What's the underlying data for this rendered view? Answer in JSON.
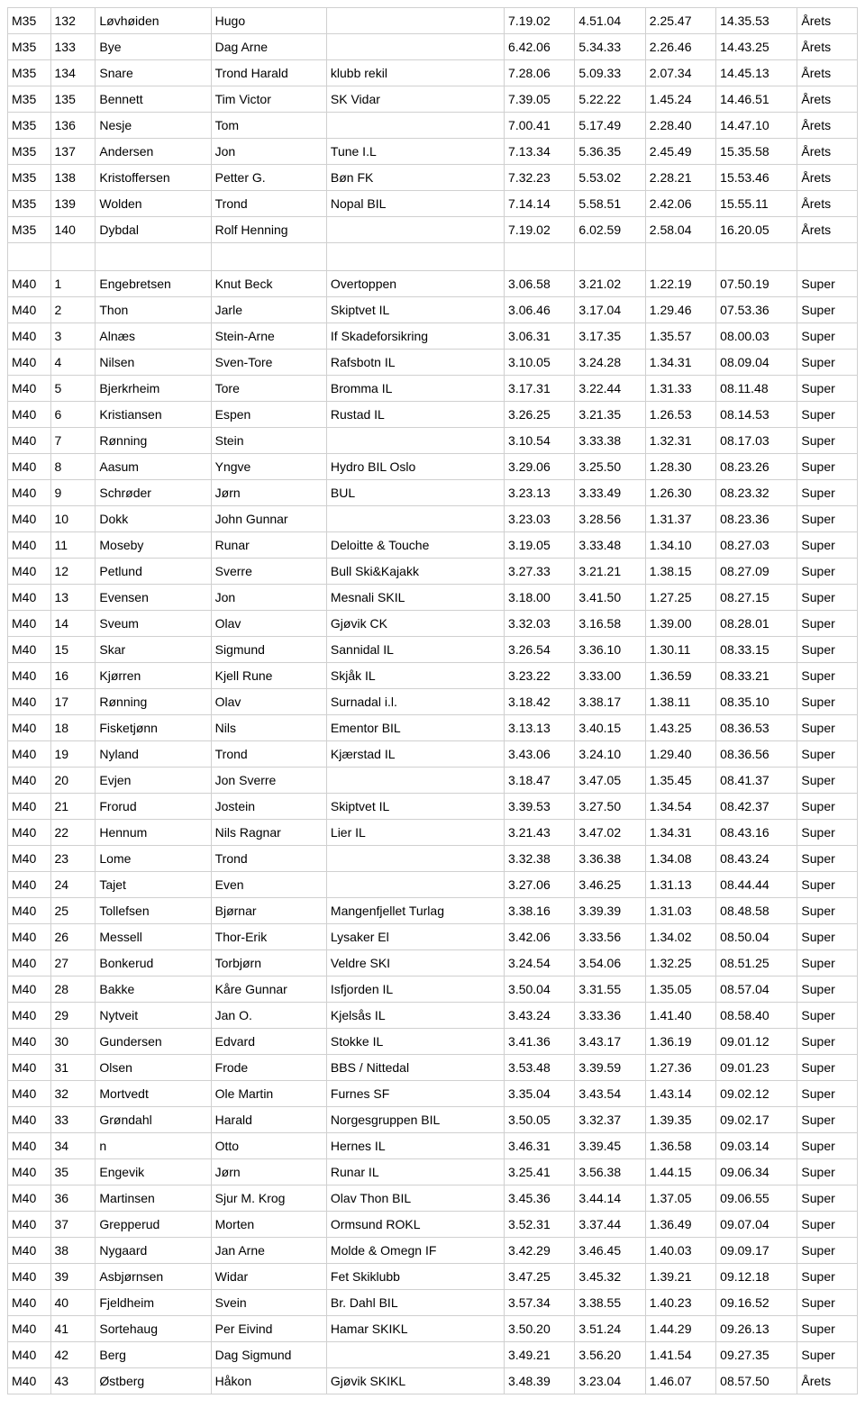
{
  "rows": [
    {
      "cls": "M35",
      "rank": "132",
      "last": "Løvhøiden",
      "first": "Hugo",
      "club": "",
      "t1": "7.19.02",
      "t2": "4.51.04",
      "t3": "2.25.47",
      "t4": "14.35.53",
      "cat": "Årets"
    },
    {
      "cls": "M35",
      "rank": "133",
      "last": "Bye",
      "first": "Dag Arne",
      "club": "",
      "t1": "6.42.06",
      "t2": "5.34.33",
      "t3": "2.26.46",
      "t4": "14.43.25",
      "cat": "Årets"
    },
    {
      "cls": "M35",
      "rank": "134",
      "last": "Snare",
      "first": "Trond Harald",
      "club": "klubb rekil",
      "t1": "7.28.06",
      "t2": "5.09.33",
      "t3": "2.07.34",
      "t4": "14.45.13",
      "cat": "Årets"
    },
    {
      "cls": "M35",
      "rank": "135",
      "last": "Bennett",
      "first": "Tim Victor",
      "club": "SK Vidar",
      "t1": "7.39.05",
      "t2": "5.22.22",
      "t3": "1.45.24",
      "t4": "14.46.51",
      "cat": "Årets"
    },
    {
      "cls": "M35",
      "rank": "136",
      "last": "Nesje",
      "first": "Tom",
      "club": "",
      "t1": "7.00.41",
      "t2": "5.17.49",
      "t3": "2.28.40",
      "t4": "14.47.10",
      "cat": "Årets"
    },
    {
      "cls": "M35",
      "rank": "137",
      "last": "Andersen",
      "first": "Jon",
      "club": "Tune I.L",
      "t1": "7.13.34",
      "t2": "5.36.35",
      "t3": "2.45.49",
      "t4": "15.35.58",
      "cat": "Årets"
    },
    {
      "cls": "M35",
      "rank": "138",
      "last": "Kristoffersen",
      "first": "Petter G.",
      "club": "Bøn FK",
      "t1": "7.32.23",
      "t2": "5.53.02",
      "t3": "2.28.21",
      "t4": "15.53.46",
      "cat": "Årets"
    },
    {
      "cls": "M35",
      "rank": "139",
      "last": "Wolden",
      "first": "Trond",
      "club": "Nopal BIL",
      "t1": "7.14.14",
      "t2": "5.58.51",
      "t3": "2.42.06",
      "t4": "15.55.11",
      "cat": "Årets"
    },
    {
      "cls": "M35",
      "rank": "140",
      "last": "Dybdal",
      "first": "Rolf Henning",
      "club": "",
      "t1": "7.19.02",
      "t2": "6.02.59",
      "t3": "2.58.04",
      "t4": "16.20.05",
      "cat": "Årets"
    },
    {
      "blank": true
    },
    {
      "cls": "M40",
      "rank": "1",
      "last": "Engebretsen",
      "first": "Knut Beck",
      "club": "Overtoppen",
      "t1": "3.06.58",
      "t2": "3.21.02",
      "t3": "1.22.19",
      "t4": "07.50.19",
      "cat": "Super"
    },
    {
      "cls": "M40",
      "rank": "2",
      "last": "Thon",
      "first": "Jarle",
      "club": "Skiptvet IL",
      "t1": "3.06.46",
      "t2": "3.17.04",
      "t3": "1.29.46",
      "t4": "07.53.36",
      "cat": "Super"
    },
    {
      "cls": "M40",
      "rank": "3",
      "last": "Alnæs",
      "first": "Stein-Arne",
      "club": "If Skadeforsikring",
      "t1": "3.06.31",
      "t2": "3.17.35",
      "t3": "1.35.57",
      "t4": "08.00.03",
      "cat": "Super"
    },
    {
      "cls": "M40",
      "rank": "4",
      "last": "Nilsen",
      "first": "Sven-Tore",
      "club": "Rafsbotn IL",
      "t1": "3.10.05",
      "t2": "3.24.28",
      "t3": "1.34.31",
      "t4": "08.09.04",
      "cat": "Super"
    },
    {
      "cls": "M40",
      "rank": "5",
      "last": "Bjerkrheim",
      "first": "Tore",
      "club": "Bromma IL",
      "t1": "3.17.31",
      "t2": "3.22.44",
      "t3": "1.31.33",
      "t4": "08.11.48",
      "cat": "Super"
    },
    {
      "cls": "M40",
      "rank": "6",
      "last": "Kristiansen",
      "first": "Espen",
      "club": "Rustad IL",
      "t1": "3.26.25",
      "t2": "3.21.35",
      "t3": "1.26.53",
      "t4": "08.14.53",
      "cat": "Super"
    },
    {
      "cls": "M40",
      "rank": "7",
      "last": "Rønning",
      "first": "Stein",
      "club": "",
      "t1": "3.10.54",
      "t2": "3.33.38",
      "t3": "1.32.31",
      "t4": "08.17.03",
      "cat": "Super"
    },
    {
      "cls": "M40",
      "rank": "8",
      "last": "Aasum",
      "first": "Yngve",
      "club": "Hydro BIL Oslo",
      "t1": "3.29.06",
      "t2": "3.25.50",
      "t3": "1.28.30",
      "t4": "08.23.26",
      "cat": "Super"
    },
    {
      "cls": "M40",
      "rank": "9",
      "last": "Schrøder",
      "first": "Jørn",
      "club": "BUL",
      "t1": "3.23.13",
      "t2": "3.33.49",
      "t3": "1.26.30",
      "t4": "08.23.32",
      "cat": "Super"
    },
    {
      "cls": "M40",
      "rank": "10",
      "last": "Dokk",
      "first": "John Gunnar",
      "club": "",
      "t1": "3.23.03",
      "t2": "3.28.56",
      "t3": "1.31.37",
      "t4": "08.23.36",
      "cat": "Super"
    },
    {
      "cls": "M40",
      "rank": "11",
      "last": "Moseby",
      "first": "Runar",
      "club": "Deloitte & Touche",
      "t1": "3.19.05",
      "t2": "3.33.48",
      "t3": "1.34.10",
      "t4": "08.27.03",
      "cat": "Super"
    },
    {
      "cls": "M40",
      "rank": "12",
      "last": "Petlund",
      "first": "Sverre",
      "club": "Bull Ski&Kajakk",
      "t1": "3.27.33",
      "t2": "3.21.21",
      "t3": "1.38.15",
      "t4": "08.27.09",
      "cat": "Super"
    },
    {
      "cls": "M40",
      "rank": "13",
      "last": "Evensen",
      "first": "Jon",
      "club": "Mesnali SKIL",
      "t1": "3.18.00",
      "t2": "3.41.50",
      "t3": "1.27.25",
      "t4": "08.27.15",
      "cat": "Super"
    },
    {
      "cls": "M40",
      "rank": "14",
      "last": "Sveum",
      "first": "Olav",
      "club": "Gjøvik CK",
      "t1": "3.32.03",
      "t2": "3.16.58",
      "t3": "1.39.00",
      "t4": "08.28.01",
      "cat": "Super"
    },
    {
      "cls": "M40",
      "rank": "15",
      "last": "Skar",
      "first": "Sigmund",
      "club": "Sannidal IL",
      "t1": "3.26.54",
      "t2": "3.36.10",
      "t3": "1.30.11",
      "t4": "08.33.15",
      "cat": "Super"
    },
    {
      "cls": "M40",
      "rank": "16",
      "last": "Kjørren",
      "first": "Kjell Rune",
      "club": "Skjåk IL",
      "t1": "3.23.22",
      "t2": "3.33.00",
      "t3": "1.36.59",
      "t4": "08.33.21",
      "cat": "Super"
    },
    {
      "cls": "M40",
      "rank": "17",
      "last": "Rønning",
      "first": "Olav",
      "club": "Surnadal i.l.",
      "t1": "3.18.42",
      "t2": "3.38.17",
      "t3": "1.38.11",
      "t4": "08.35.10",
      "cat": "Super"
    },
    {
      "cls": "M40",
      "rank": "18",
      "last": "Fisketjønn",
      "first": "Nils",
      "club": "Ementor BIL",
      "t1": "3.13.13",
      "t2": "3.40.15",
      "t3": "1.43.25",
      "t4": "08.36.53",
      "cat": "Super"
    },
    {
      "cls": "M40",
      "rank": "19",
      "last": "Nyland",
      "first": "Trond",
      "club": "Kjærstad IL",
      "t1": "3.43.06",
      "t2": "3.24.10",
      "t3": "1.29.40",
      "t4": "08.36.56",
      "cat": "Super"
    },
    {
      "cls": "M40",
      "rank": "20",
      "last": "Evjen",
      "first": "Jon Sverre",
      "club": "",
      "t1": "3.18.47",
      "t2": "3.47.05",
      "t3": "1.35.45",
      "t4": "08.41.37",
      "cat": "Super"
    },
    {
      "cls": "M40",
      "rank": "21",
      "last": "Frorud",
      "first": "Jostein",
      "club": "Skiptvet IL",
      "t1": "3.39.53",
      "t2": "3.27.50",
      "t3": "1.34.54",
      "t4": "08.42.37",
      "cat": "Super"
    },
    {
      "cls": "M40",
      "rank": "22",
      "last": "Hennum",
      "first": "Nils Ragnar",
      "club": "Lier IL",
      "t1": "3.21.43",
      "t2": "3.47.02",
      "t3": "1.34.31",
      "t4": "08.43.16",
      "cat": "Super"
    },
    {
      "cls": "M40",
      "rank": "23",
      "last": "Lome",
      "first": "Trond",
      "club": "",
      "t1": "3.32.38",
      "t2": "3.36.38",
      "t3": "1.34.08",
      "t4": "08.43.24",
      "cat": "Super"
    },
    {
      "cls": "M40",
      "rank": "24",
      "last": "Tajet",
      "first": "Even",
      "club": "",
      "t1": "3.27.06",
      "t2": "3.46.25",
      "t3": "1.31.13",
      "t4": "08.44.44",
      "cat": "Super"
    },
    {
      "cls": "M40",
      "rank": "25",
      "last": "Tollefsen",
      "first": "Bjørnar",
      "club": "Mangenfjellet Turlag",
      "t1": "3.38.16",
      "t2": "3.39.39",
      "t3": "1.31.03",
      "t4": "08.48.58",
      "cat": "Super"
    },
    {
      "cls": "M40",
      "rank": "26",
      "last": "Messell",
      "first": "Thor-Erik",
      "club": "Lysaker El",
      "t1": "3.42.06",
      "t2": "3.33.56",
      "t3": "1.34.02",
      "t4": "08.50.04",
      "cat": "Super"
    },
    {
      "cls": "M40",
      "rank": "27",
      "last": "Bonkerud",
      "first": "Torbjørn",
      "club": "Veldre SKI",
      "t1": "3.24.54",
      "t2": "3.54.06",
      "t3": "1.32.25",
      "t4": "08.51.25",
      "cat": "Super"
    },
    {
      "cls": "M40",
      "rank": "28",
      "last": "Bakke",
      "first": "Kåre Gunnar",
      "club": "Isfjorden IL",
      "t1": "3.50.04",
      "t2": "3.31.55",
      "t3": "1.35.05",
      "t4": "08.57.04",
      "cat": "Super"
    },
    {
      "cls": "M40",
      "rank": "29",
      "last": "Nytveit",
      "first": "Jan O.",
      "club": "Kjelsås IL",
      "t1": "3.43.24",
      "t2": "3.33.36",
      "t3": "1.41.40",
      "t4": "08.58.40",
      "cat": "Super"
    },
    {
      "cls": "M40",
      "rank": "30",
      "last": "Gundersen",
      "first": "Edvard",
      "club": "Stokke IL",
      "t1": "3.41.36",
      "t2": "3.43.17",
      "t3": "1.36.19",
      "t4": "09.01.12",
      "cat": "Super"
    },
    {
      "cls": "M40",
      "rank": "31",
      "last": "Olsen",
      "first": "Frode",
      "club": "BBS / Nittedal",
      "t1": "3.53.48",
      "t2": "3.39.59",
      "t3": "1.27.36",
      "t4": "09.01.23",
      "cat": "Super"
    },
    {
      "cls": "M40",
      "rank": "32",
      "last": "Mortvedt",
      "first": "Ole Martin",
      "club": "Furnes SF",
      "t1": "3.35.04",
      "t2": "3.43.54",
      "t3": "1.43.14",
      "t4": "09.02.12",
      "cat": "Super"
    },
    {
      "cls": "M40",
      "rank": "33",
      "last": "Grøndahl",
      "first": "Harald",
      "club": "Norgesgruppen BIL",
      "t1": "3.50.05",
      "t2": "3.32.37",
      "t3": "1.39.35",
      "t4": "09.02.17",
      "cat": "Super"
    },
    {
      "cls": "M40",
      "rank": "34",
      "last": "n",
      "first": "Otto",
      "club": "Hernes IL",
      "t1": "3.46.31",
      "t2": "3.39.45",
      "t3": "1.36.58",
      "t4": "09.03.14",
      "cat": "Super"
    },
    {
      "cls": "M40",
      "rank": "35",
      "last": "Engevik",
      "first": "Jørn",
      "club": "Runar IL",
      "t1": "3.25.41",
      "t2": "3.56.38",
      "t3": "1.44.15",
      "t4": "09.06.34",
      "cat": "Super"
    },
    {
      "cls": "M40",
      "rank": "36",
      "last": "Martinsen",
      "first": "Sjur M. Krog",
      "club": "Olav Thon BIL",
      "t1": "3.45.36",
      "t2": "3.44.14",
      "t3": "1.37.05",
      "t4": "09.06.55",
      "cat": "Super"
    },
    {
      "cls": "M40",
      "rank": "37",
      "last": "Grepperud",
      "first": "Morten",
      "club": "Ormsund ROKL",
      "t1": "3.52.31",
      "t2": "3.37.44",
      "t3": "1.36.49",
      "t4": "09.07.04",
      "cat": "Super"
    },
    {
      "cls": "M40",
      "rank": "38",
      "last": "Nygaard",
      "first": "Jan Arne",
      "club": "Molde & Omegn IF",
      "t1": "3.42.29",
      "t2": "3.46.45",
      "t3": "1.40.03",
      "t4": "09.09.17",
      "cat": "Super"
    },
    {
      "cls": "M40",
      "rank": "39",
      "last": "Asbjørnsen",
      "first": "Widar",
      "club": "Fet Skiklubb",
      "t1": "3.47.25",
      "t2": "3.45.32",
      "t3": "1.39.21",
      "t4": "09.12.18",
      "cat": "Super"
    },
    {
      "cls": "M40",
      "rank": "40",
      "last": "Fjeldheim",
      "first": "Svein",
      "club": "Br. Dahl BIL",
      "t1": "3.57.34",
      "t2": "3.38.55",
      "t3": "1.40.23",
      "t4": "09.16.52",
      "cat": "Super"
    },
    {
      "cls": "M40",
      "rank": "41",
      "last": "Sortehaug",
      "first": "Per Eivind",
      "club": "Hamar SKIKL",
      "t1": "3.50.20",
      "t2": "3.51.24",
      "t3": "1.44.29",
      "t4": "09.26.13",
      "cat": "Super"
    },
    {
      "cls": "M40",
      "rank": "42",
      "last": "Berg",
      "first": "Dag Sigmund",
      "club": "",
      "t1": "3.49.21",
      "t2": "3.56.20",
      "t3": "1.41.54",
      "t4": "09.27.35",
      "cat": "Super"
    },
    {
      "cls": "M40",
      "rank": "43",
      "last": "Østberg",
      "first": "Håkon",
      "club": "Gjøvik SKIKL",
      "t1": "3.48.39",
      "t2": "3.23.04",
      "t3": "1.46.07",
      "t4": "08.57.50",
      "cat": "Årets"
    }
  ]
}
